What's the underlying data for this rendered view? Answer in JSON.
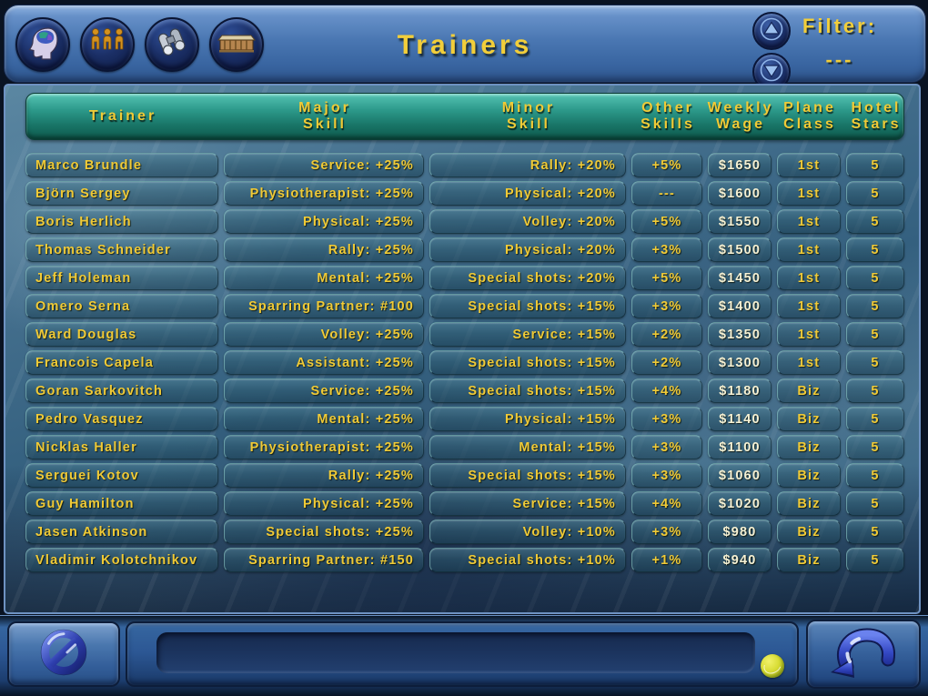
{
  "title": "Trainers",
  "colors": {
    "accent_yellow": "#f0ca36",
    "wage_white": "#f6f1d3",
    "header_teal": "#2d9a8b",
    "topbar_blue": "#4a77b2",
    "panel_water_blue": "#34607f",
    "bottombar_blue": "#2c5794"
  },
  "toolbar": {
    "buttons": [
      {
        "name": "mind",
        "icon": "head-brain-icon"
      },
      {
        "name": "staff",
        "icon": "three-people-icon"
      },
      {
        "name": "scout",
        "icon": "binoculars-icon"
      },
      {
        "name": "clubhouse",
        "icon": "building-icon"
      }
    ],
    "scroll": [
      {
        "name": "up",
        "icon": "arrow-up-icon"
      },
      {
        "name": "down",
        "icon": "arrow-down-icon"
      }
    ]
  },
  "filter": {
    "label": "Filter:",
    "value": "---"
  },
  "table": {
    "headers": [
      {
        "line1": "Trainer",
        "line2": ""
      },
      {
        "line1": "Major",
        "line2": "Skill"
      },
      {
        "line1": "Minor",
        "line2": "Skill"
      },
      {
        "line1": "Other",
        "line2": "Skills"
      },
      {
        "line1": "Weekly",
        "line2": "Wage"
      },
      {
        "line1": "Plane",
        "line2": "Class"
      },
      {
        "line1": "Hotel",
        "line2": "Stars"
      }
    ],
    "rows": [
      {
        "name": "Marco Brundle",
        "major": "Service: +25%",
        "minor": "Rally: +20%",
        "other": "+5%",
        "wage": "$1650",
        "plane": "1st",
        "hotel": "5"
      },
      {
        "name": "Björn Sergey",
        "major": "Physiotherapist: +25%",
        "minor": "Physical: +20%",
        "other": "---",
        "wage": "$1600",
        "plane": "1st",
        "hotel": "5"
      },
      {
        "name": "Boris Herlich",
        "major": "Physical: +25%",
        "minor": "Volley: +20%",
        "other": "+5%",
        "wage": "$1550",
        "plane": "1st",
        "hotel": "5"
      },
      {
        "name": "Thomas Schneider",
        "major": "Rally: +25%",
        "minor": "Physical: +20%",
        "other": "+3%",
        "wage": "$1500",
        "plane": "1st",
        "hotel": "5"
      },
      {
        "name": "Jeff Holeman",
        "major": "Mental: +25%",
        "minor": "Special shots: +20%",
        "other": "+5%",
        "wage": "$1450",
        "plane": "1st",
        "hotel": "5"
      },
      {
        "name": "Omero Serna",
        "major": "Sparring Partner: #100",
        "minor": "Special shots: +15%",
        "other": "+3%",
        "wage": "$1400",
        "plane": "1st",
        "hotel": "5"
      },
      {
        "name": "Ward Douglas",
        "major": "Volley: +25%",
        "minor": "Service: +15%",
        "other": "+2%",
        "wage": "$1350",
        "plane": "1st",
        "hotel": "5"
      },
      {
        "name": "Francois Capela",
        "major": "Assistant: +25%",
        "minor": "Special shots: +15%",
        "other": "+2%",
        "wage": "$1300",
        "plane": "1st",
        "hotel": "5"
      },
      {
        "name": "Goran Sarkovitch",
        "major": "Service: +25%",
        "minor": "Special shots: +15%",
        "other": "+4%",
        "wage": "$1180",
        "plane": "Biz",
        "hotel": "5"
      },
      {
        "name": "Pedro Vasquez",
        "major": "Mental: +25%",
        "minor": "Physical: +15%",
        "other": "+3%",
        "wage": "$1140",
        "plane": "Biz",
        "hotel": "5"
      },
      {
        "name": "Nicklas Haller",
        "major": "Physiotherapist: +25%",
        "minor": "Mental: +15%",
        "other": "+3%",
        "wage": "$1100",
        "plane": "Biz",
        "hotel": "5"
      },
      {
        "name": "Serguei Kotov",
        "major": "Rally: +25%",
        "minor": "Special shots: +15%",
        "other": "+3%",
        "wage": "$1060",
        "plane": "Biz",
        "hotel": "5"
      },
      {
        "name": "Guy Hamilton",
        "major": "Physical: +25%",
        "minor": "Service: +15%",
        "other": "+4%",
        "wage": "$1020",
        "plane": "Biz",
        "hotel": "5"
      },
      {
        "name": "Jasen Atkinson",
        "major": "Special shots: +25%",
        "minor": "Volley: +10%",
        "other": "+3%",
        "wage": "$980",
        "plane": "Biz",
        "hotel": "5"
      },
      {
        "name": "Vladimir Kolotchnikov",
        "major": "Sparring Partner: #150",
        "minor": "Special shots: +10%",
        "other": "+1%",
        "wage": "$940",
        "plane": "Biz",
        "hotel": "5"
      }
    ]
  },
  "bottombar": {
    "message_text": "",
    "cancel_icon": "no-entry-icon",
    "back_icon": "return-arrow-icon",
    "ball_icon": "tennis-ball-icon"
  }
}
